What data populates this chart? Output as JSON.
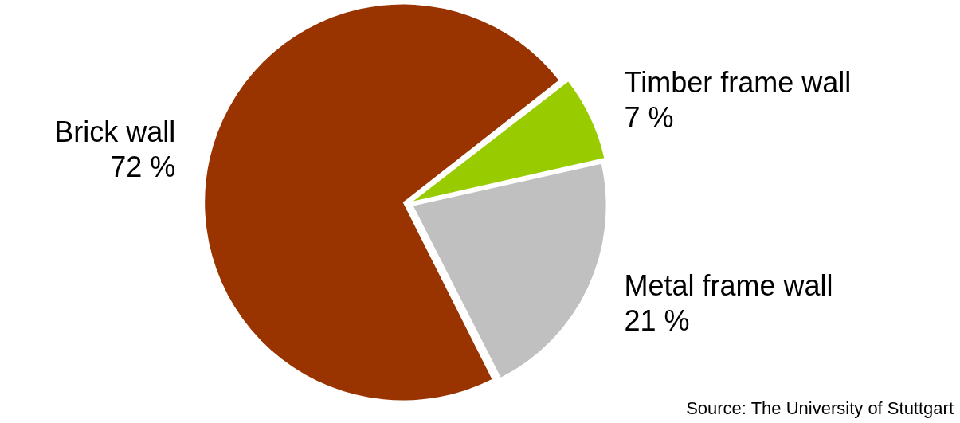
{
  "chart_data": {
    "type": "pie",
    "categories": [
      "Brick wall",
      "Timber frame wall",
      "Metal frame wall"
    ],
    "values": [
      72,
      7,
      21
    ],
    "colors": [
      "#993300",
      "#99cc00",
      "#c0c0c0"
    ],
    "value_labels": [
      "72 %",
      "7 %",
      "21 %"
    ],
    "legend": false,
    "annotations": [
      "Source: The University of Stuttgart"
    ]
  }
}
